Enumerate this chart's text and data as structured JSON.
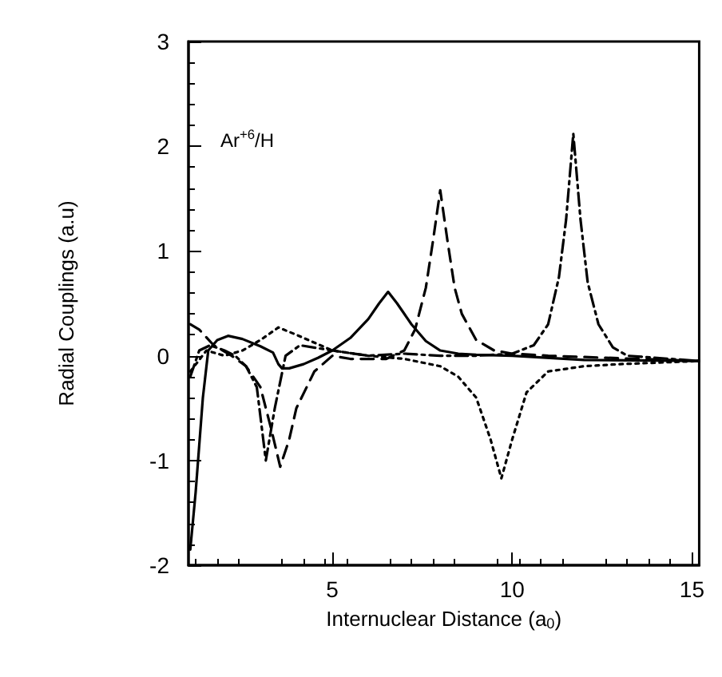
{
  "chart_data": {
    "type": "line",
    "xlabel": "Internuclear Distance (a$_{0}$)",
    "ylabel": "Radial Couplings (a.u)",
    "annotations": [
      "Ar$^{+6}$/H"
    ],
    "xlim": [
      1,
      15.2
    ],
    "xticks": [
      5,
      10,
      15
    ],
    "ylim": [
      -2,
      3
    ],
    "yticks": [
      -2,
      -1,
      0,
      1,
      2,
      3
    ],
    "grid": false,
    "marker": "none",
    "series": [
      {
        "color": "#000000",
        "line_style": "solid",
        "x": [
          1.05,
          1.2,
          1.4,
          1.55,
          1.8,
          2.1,
          2.5,
          3.0,
          3.35,
          3.5,
          3.6,
          3.8,
          4.2,
          4.6,
          5.0,
          5.5,
          6.0,
          6.3,
          6.55,
          6.8,
          7.2,
          7.6,
          8.0,
          8.5,
          9.0,
          10.0,
          12.0,
          15.2
        ],
        "values": [
          -1.85,
          -1.3,
          -0.4,
          0.05,
          0.15,
          0.19,
          0.16,
          0.09,
          0.03,
          -0.08,
          -0.12,
          -0.12,
          -0.08,
          -0.02,
          0.05,
          0.17,
          0.35,
          0.5,
          0.61,
          0.5,
          0.3,
          0.14,
          0.05,
          0.02,
          0.01,
          0,
          -0.04,
          -0.05
        ]
      },
      {
        "color": "#000000",
        "line_style": "dashed",
        "x": [
          1.05,
          1.3,
          1.7,
          2.2,
          2.6,
          3.0,
          3.3,
          3.55,
          3.8,
          4.0,
          4.5,
          5.0,
          5.5,
          6.5,
          7.0,
          7.3,
          7.6,
          7.8,
          8.0,
          8.2,
          8.4,
          8.6,
          9.0,
          9.5,
          10.0,
          11.0,
          15.2
        ],
        "values": [
          0.3,
          0.25,
          0.1,
          0,
          -0.1,
          -0.3,
          -0.7,
          -1.06,
          -0.8,
          -0.5,
          -0.15,
          0,
          -0.03,
          -0.03,
          0.05,
          0.25,
          0.65,
          1.1,
          1.58,
          1.1,
          0.65,
          0.4,
          0.15,
          0.05,
          0.02,
          0,
          -0.05
        ]
      },
      {
        "color": "#000000",
        "line_style": "dashdot",
        "x": [
          1.05,
          1.3,
          1.6,
          2.0,
          2.3,
          2.6,
          2.9,
          3.15,
          3.4,
          3.7,
          4.1,
          5.0,
          6.0,
          7.0,
          8.0,
          9.0,
          10.0,
          10.6,
          11.0,
          11.3,
          11.5,
          11.7,
          11.9,
          12.1,
          12.4,
          12.8,
          13.2,
          15.2
        ],
        "values": [
          -0.2,
          0.05,
          0.1,
          0.05,
          0,
          -0.1,
          -0.3,
          -1.0,
          -0.5,
          0,
          0.1,
          0.05,
          0,
          0.02,
          0,
          0,
          0.02,
          0.1,
          0.3,
          0.75,
          1.3,
          2.12,
          1.3,
          0.7,
          0.3,
          0.08,
          0,
          -0.05
        ]
      },
      {
        "color": "#000000",
        "line_style": "dotted",
        "x": [
          1.05,
          1.5,
          2.0,
          2.5,
          3.0,
          3.5,
          4.0,
          5.0,
          6.0,
          7.0,
          8.0,
          8.5,
          9.0,
          9.4,
          9.7,
          10.0,
          10.4,
          11.0,
          12.0,
          13.0,
          15.2
        ],
        "values": [
          -0.15,
          0.05,
          0,
          0.05,
          0.15,
          0.27,
          0.2,
          0.05,
          0,
          -0.03,
          -0.1,
          -0.2,
          -0.4,
          -0.8,
          -1.17,
          -0.8,
          -0.35,
          -0.15,
          -0.1,
          -0.08,
          -0.05
        ]
      }
    ]
  }
}
